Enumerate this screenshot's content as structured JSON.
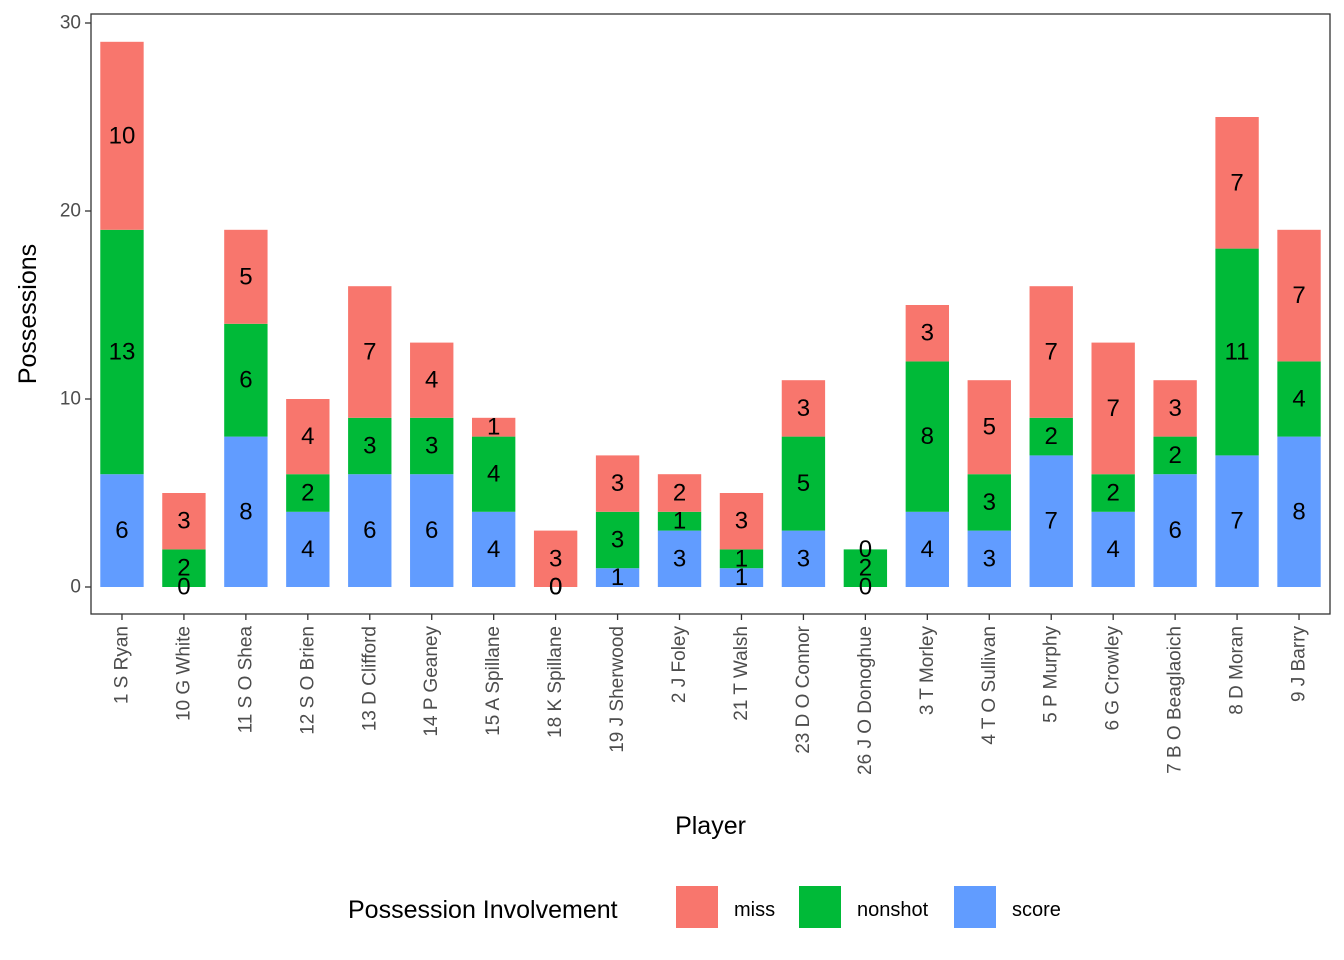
{
  "chart_data": {
    "type": "bar",
    "stacked": true,
    "xlabel": "Player",
    "ylabel": "Possessions",
    "ylim": [
      0,
      30
    ],
    "yticks": [
      0,
      10,
      20,
      30
    ],
    "grid": false,
    "legend_position": "bottom",
    "legend_title": "Possession Involvement",
    "categories": [
      "1 S Ryan",
      "10 G White",
      "11 S O Shea",
      "12 S O Brien",
      "13 D Clifford",
      "14 P Geaney",
      "15 A Spillane",
      "18 K Spillane",
      "19 J Sherwood",
      "2 J Foley",
      "21 T Walsh",
      "23 D O Connor",
      "26 J O Donoghue",
      "3 T Morley",
      "4 T O Sullivan",
      "5 P Murphy",
      "6 G Crowley",
      "7 B O Beaglaoich",
      "8 D Moran",
      "9 J Barry"
    ],
    "series": [
      {
        "name": "score",
        "color": "#619CFF",
        "values": [
          6,
          0,
          8,
          4,
          6,
          6,
          4,
          0,
          1,
          3,
          1,
          3,
          0,
          4,
          3,
          7,
          4,
          6,
          7,
          8
        ]
      },
      {
        "name": "nonshot",
        "color": "#00BA38",
        "values": [
          13,
          2,
          6,
          2,
          3,
          3,
          4,
          0,
          3,
          1,
          1,
          5,
          2,
          8,
          3,
          2,
          2,
          2,
          11,
          4
        ]
      },
      {
        "name": "miss",
        "color": "#F8766D",
        "values": [
          10,
          3,
          5,
          4,
          7,
          4,
          1,
          3,
          3,
          2,
          3,
          3,
          0,
          3,
          5,
          7,
          7,
          3,
          7,
          7
        ]
      }
    ],
    "legend_order": [
      "miss",
      "nonshot",
      "score"
    ]
  }
}
